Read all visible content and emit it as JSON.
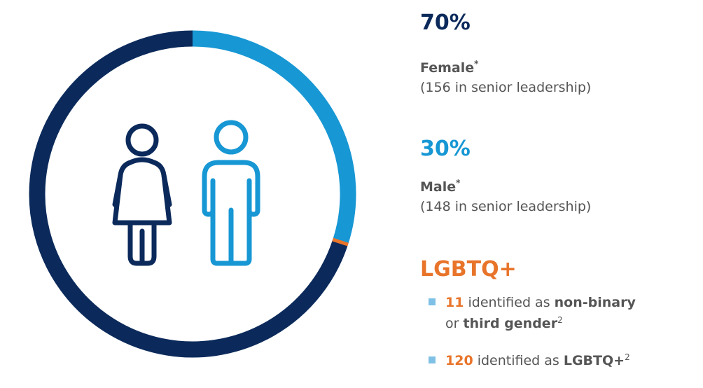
{
  "chart_data": {
    "type": "donut",
    "values": [
      70,
      30
    ],
    "value_labels": [
      "70%",
      "30%"
    ],
    "colors": [
      "#0b2a5b",
      "#1797d4"
    ],
    "labels": [
      "Female",
      "Male"
    ],
    "notes": [
      "*",
      "*"
    ],
    "details": [
      "(156 in senior leadership)",
      "(148 in senior leadership)"
    ]
  },
  "lgbtq": {
    "title": "LGBTQ+",
    "items": [
      [
        "11",
        " identified as ",
        "non-binary",
        "or ",
        "third gender",
        "2"
      ],
      [
        "120",
        " identified as ",
        "LGBTQ+",
        "2"
      ]
    ]
  }
}
